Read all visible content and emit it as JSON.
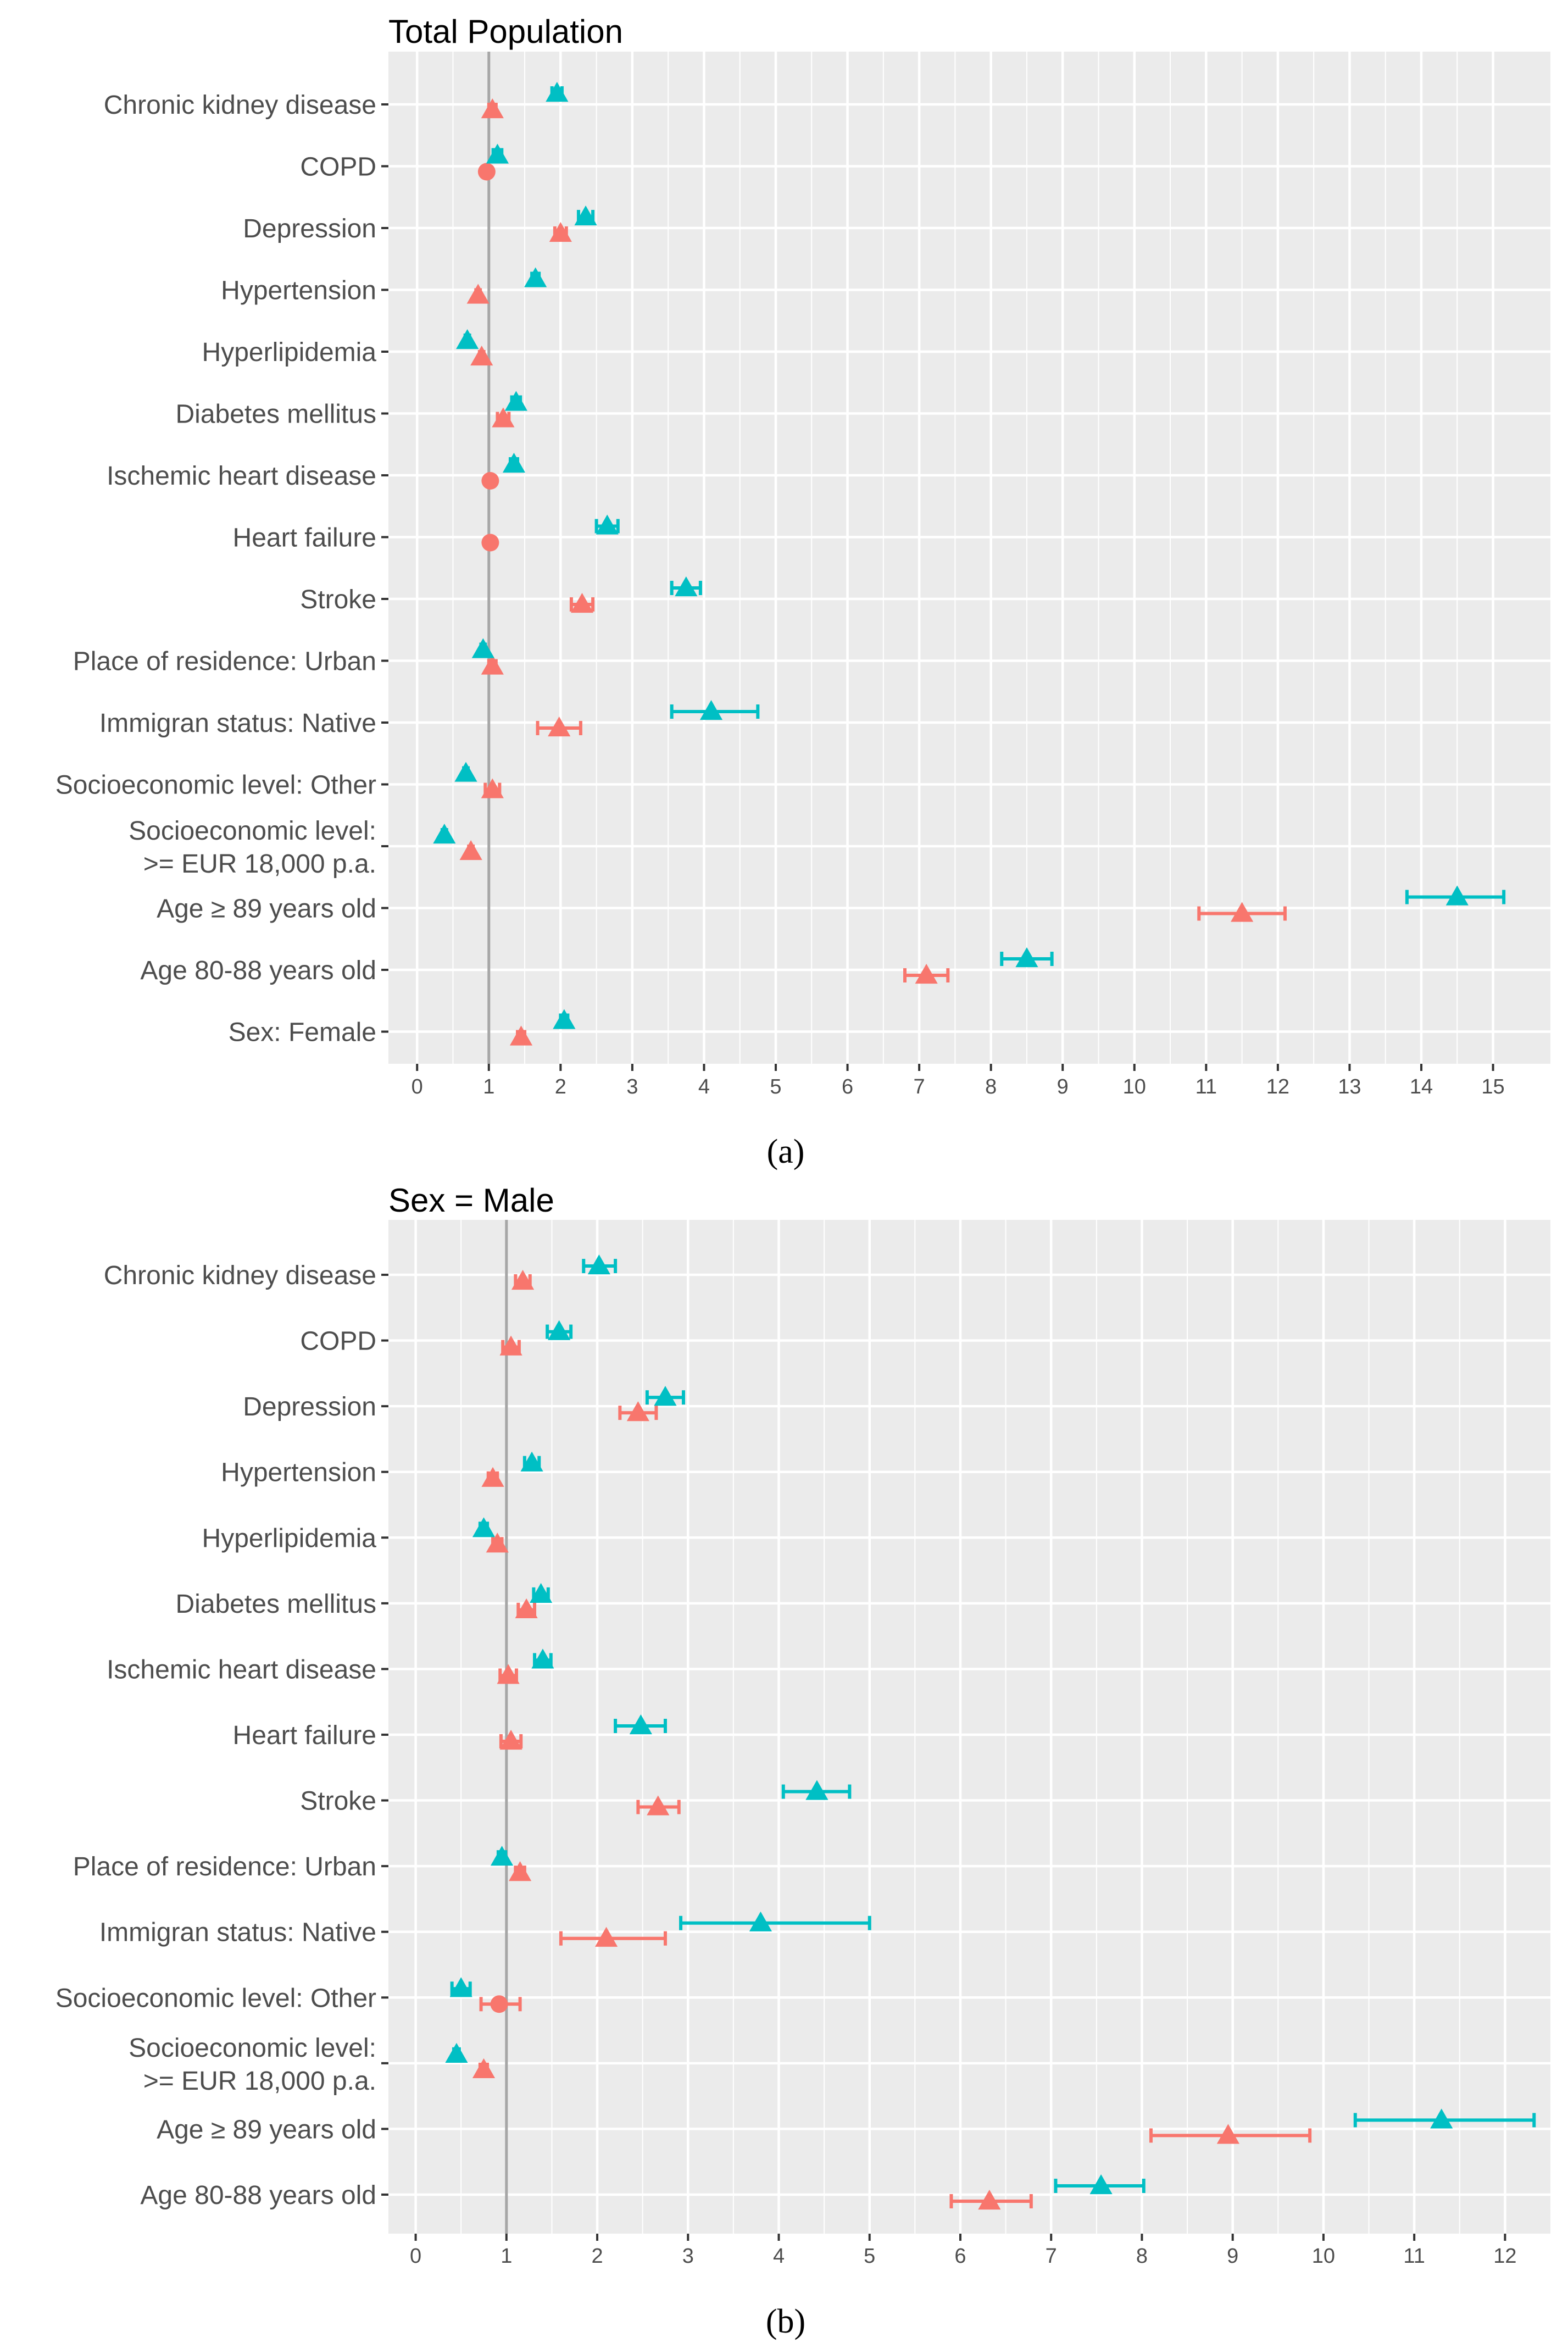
{
  "colors": {
    "panel_background": "#EBEBEB",
    "grid": "#FFFFFF",
    "reference_line": "#A6A6A6",
    "series_red": "#F8766D",
    "series_teal": "#00BFC4"
  },
  "chart_data": [
    {
      "type": "forest",
      "caption": "(a)",
      "title": "Total Population",
      "xlim": [
        -0.4,
        15.8
      ],
      "xticks": [
        0,
        1,
        2,
        3,
        4,
        5,
        6,
        7,
        8,
        9,
        10,
        11,
        12,
        13,
        14,
        15
      ],
      "reference_value": 1,
      "categories": [
        "Chronic kidney disease",
        "COPD",
        "Depression",
        "Hypertension",
        "Hyperlipidemia",
        "Diabetes mellitus",
        "Ischemic heart disease",
        "Heart failure",
        "Stroke",
        "Place of residence: Urban",
        "Immigran status: Native",
        "Socioeconomic level: Other",
        [
          "Socioeconomic level:",
          ">= EUR 18,000 p.a."
        ],
        "Age ≥ 89 years old",
        "Age 80-88 years old",
        "Sex: Female"
      ],
      "series": [
        {
          "name": "red",
          "points": [
            {
              "shape": "triangle",
              "value": 1.05,
              "low": 1.0,
              "high": 1.1
            },
            {
              "shape": "circle",
              "value": 0.97,
              "low": 0.94,
              "high": 1.0
            },
            {
              "shape": "triangle",
              "value": 2.0,
              "low": 1.92,
              "high": 2.08
            },
            {
              "shape": "triangle",
              "value": 0.85,
              "low": 0.82,
              "high": 0.88
            },
            {
              "shape": "triangle",
              "value": 0.9,
              "low": 0.87,
              "high": 0.93
            },
            {
              "shape": "triangle",
              "value": 1.2,
              "low": 1.12,
              "high": 1.28
            },
            {
              "shape": "circle",
              "value": 1.02,
              "low": 0.99,
              "high": 1.05
            },
            {
              "shape": "circle",
              "value": 1.02,
              "low": 0.99,
              "high": 1.05
            },
            {
              "shape": "triangle",
              "value": 2.3,
              "low": 2.15,
              "high": 2.45
            },
            {
              "shape": "triangle",
              "value": 1.05,
              "low": 1.0,
              "high": 1.1
            },
            {
              "shape": "triangle",
              "value": 1.98,
              "low": 1.68,
              "high": 2.28
            },
            {
              "shape": "triangle",
              "value": 1.05,
              "low": 0.95,
              "high": 1.15
            },
            {
              "shape": "triangle",
              "value": 0.75,
              "low": 0.72,
              "high": 0.78
            },
            {
              "shape": "triangle",
              "value": 11.5,
              "low": 10.9,
              "high": 12.1
            },
            {
              "shape": "triangle",
              "value": 7.1,
              "low": 6.8,
              "high": 7.4
            },
            {
              "shape": "triangle",
              "value": 1.45,
              "low": 1.4,
              "high": 1.5
            }
          ]
        },
        {
          "name": "teal",
          "points": [
            {
              "shape": "triangle",
              "value": 1.95,
              "low": 1.88,
              "high": 2.02
            },
            {
              "shape": "triangle",
              "value": 1.12,
              "low": 1.06,
              "high": 1.18
            },
            {
              "shape": "triangle",
              "value": 2.35,
              "low": 2.25,
              "high": 2.45
            },
            {
              "shape": "triangle",
              "value": 1.65,
              "low": 1.6,
              "high": 1.7
            },
            {
              "shape": "triangle",
              "value": 0.7,
              "low": 0.67,
              "high": 0.73
            },
            {
              "shape": "triangle",
              "value": 1.38,
              "low": 1.32,
              "high": 1.44
            },
            {
              "shape": "triangle",
              "value": 1.35,
              "low": 1.3,
              "high": 1.4
            },
            {
              "shape": "triangle",
              "value": 2.65,
              "low": 2.5,
              "high": 2.8
            },
            {
              "shape": "triangle",
              "value": 3.75,
              "low": 3.55,
              "high": 3.95
            },
            {
              "shape": "triangle",
              "value": 0.92,
              "low": 0.89,
              "high": 0.95
            },
            {
              "shape": "triangle",
              "value": 4.1,
              "low": 3.55,
              "high": 4.75
            },
            {
              "shape": "triangle",
              "value": 0.68,
              "low": 0.65,
              "high": 0.71
            },
            {
              "shape": "triangle",
              "value": 0.38,
              "low": 0.35,
              "high": 0.41
            },
            {
              "shape": "triangle",
              "value": 14.5,
              "low": 13.8,
              "high": 15.15
            },
            {
              "shape": "triangle",
              "value": 8.5,
              "low": 8.15,
              "high": 8.85
            },
            {
              "shape": "triangle",
              "value": 2.05,
              "low": 2.0,
              "high": 2.1
            }
          ]
        }
      ]
    },
    {
      "type": "forest",
      "caption": "(b)",
      "title": "Sex = Male",
      "xlim": [
        -0.3,
        12.5
      ],
      "xticks": [
        0,
        1,
        2,
        3,
        4,
        5,
        6,
        7,
        8,
        9,
        10,
        11,
        12
      ],
      "reference_value": 1,
      "categories": [
        "Chronic kidney disease",
        "COPD",
        "Depression",
        "Hypertension",
        "Hyperlipidemia",
        "Diabetes mellitus",
        "Ischemic heart disease",
        "Heart failure",
        "Stroke",
        "Place of residence: Urban",
        "Immigran status: Native",
        "Socioeconomic level: Other",
        [
          "Socioeconomic level:",
          ">= EUR 18,000 p.a."
        ],
        "Age ≥ 89 years old",
        "Age 80-88 years old"
      ],
      "series": [
        {
          "name": "red",
          "points": [
            {
              "shape": "triangle",
              "value": 1.18,
              "low": 1.1,
              "high": 1.26
            },
            {
              "shape": "triangle",
              "value": 1.05,
              "low": 0.96,
              "high": 1.14
            },
            {
              "shape": "triangle",
              "value": 2.45,
              "low": 2.25,
              "high": 2.65
            },
            {
              "shape": "triangle",
              "value": 0.85,
              "low": 0.8,
              "high": 0.9
            },
            {
              "shape": "triangle",
              "value": 0.9,
              "low": 0.85,
              "high": 0.95
            },
            {
              "shape": "triangle",
              "value": 1.22,
              "low": 1.13,
              "high": 1.31
            },
            {
              "shape": "triangle",
              "value": 1.02,
              "low": 0.93,
              "high": 1.11
            },
            {
              "shape": "triangle",
              "value": 1.05,
              "low": 0.94,
              "high": 1.16
            },
            {
              "shape": "triangle",
              "value": 2.67,
              "low": 2.45,
              "high": 2.9
            },
            {
              "shape": "triangle",
              "value": 1.15,
              "low": 1.1,
              "high": 1.2
            },
            {
              "shape": "triangle",
              "value": 2.1,
              "low": 1.6,
              "high": 2.75
            },
            {
              "shape": "circle",
              "value": 0.92,
              "low": 0.72,
              "high": 1.15
            },
            {
              "shape": "triangle",
              "value": 0.75,
              "low": 0.71,
              "high": 0.79
            },
            {
              "shape": "triangle",
              "value": 8.95,
              "low": 8.1,
              "high": 9.85
            },
            {
              "shape": "triangle",
              "value": 6.32,
              "low": 5.9,
              "high": 6.78
            }
          ]
        },
        {
          "name": "teal",
          "points": [
            {
              "shape": "triangle",
              "value": 2.02,
              "low": 1.85,
              "high": 2.2
            },
            {
              "shape": "triangle",
              "value": 1.58,
              "low": 1.45,
              "high": 1.71
            },
            {
              "shape": "triangle",
              "value": 2.75,
              "low": 2.55,
              "high": 2.95
            },
            {
              "shape": "triangle",
              "value": 1.28,
              "low": 1.2,
              "high": 1.36
            },
            {
              "shape": "triangle",
              "value": 0.75,
              "low": 0.71,
              "high": 0.79
            },
            {
              "shape": "triangle",
              "value": 1.38,
              "low": 1.3,
              "high": 1.46
            },
            {
              "shape": "triangle",
              "value": 1.4,
              "low": 1.31,
              "high": 1.49
            },
            {
              "shape": "triangle",
              "value": 2.48,
              "low": 2.2,
              "high": 2.75
            },
            {
              "shape": "triangle",
              "value": 4.42,
              "low": 4.05,
              "high": 4.78
            },
            {
              "shape": "triangle",
              "value": 0.95,
              "low": 0.91,
              "high": 0.99
            },
            {
              "shape": "triangle",
              "value": 3.8,
              "low": 2.92,
              "high": 5.0
            },
            {
              "shape": "triangle",
              "value": 0.5,
              "low": 0.4,
              "high": 0.6
            },
            {
              "shape": "triangle",
              "value": 0.45,
              "low": 0.42,
              "high": 0.48
            },
            {
              "shape": "triangle",
              "value": 11.3,
              "low": 10.35,
              "high": 12.32
            },
            {
              "shape": "triangle",
              "value": 7.55,
              "low": 7.05,
              "high": 8.02
            }
          ]
        }
      ]
    }
  ]
}
